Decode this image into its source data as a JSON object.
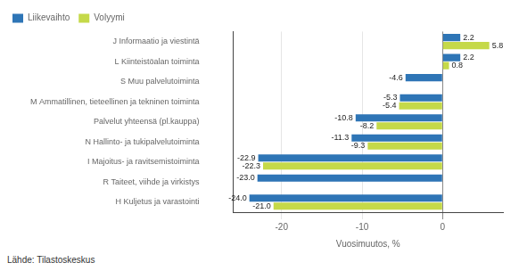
{
  "chart_data": {
    "type": "bar",
    "orientation": "horizontal",
    "categories": [
      "H Kuljetus ja varastointi",
      "R Taiteet, viihde ja virkistys",
      "I Majoitus- ja ravitsemistoiminta",
      "N Hallinto- ja tukipalvelutoiminta",
      "Palvelut yhteensä (pl.kauppa)",
      "M Ammatillinen, tieteellinen ja tekninen toiminta",
      "S Muu palvelutoiminta",
      "L Kiinteistöalan toiminta",
      "J Informaatio ja viestintä"
    ],
    "series": [
      {
        "name": "Liikevaihto",
        "color": "#2E75B6",
        "values": [
          -24.0,
          -23.0,
          -22.9,
          -11.3,
          -10.8,
          -5.3,
          -4.6,
          2.2,
          2.2
        ],
        "value_labels": [
          "-24.0",
          "-23.0",
          "-22.9",
          "-11.3",
          "-10.8",
          "-5.3",
          "-4.6",
          "2.2",
          "2.2"
        ]
      },
      {
        "name": "Volyymi",
        "color": "#C5D949",
        "values": [
          -21.0,
          null,
          -22.3,
          -9.3,
          -8.2,
          -5.4,
          null,
          0.8,
          5.8
        ],
        "value_labels": [
          "-21.0",
          null,
          "-22.3",
          "-9.3",
          "-8.2",
          "-5.4",
          null,
          "0.8",
          "5.8"
        ]
      }
    ],
    "xlabel": "Vuosimuutos, %",
    "xlim": [
      -26,
      7.5
    ],
    "xticks": [
      -20,
      -10,
      0
    ],
    "grid": true,
    "legend": "upper left",
    "data_labels": true,
    "annotations": [
      "Lähde: Tilastoskeskus"
    ]
  }
}
